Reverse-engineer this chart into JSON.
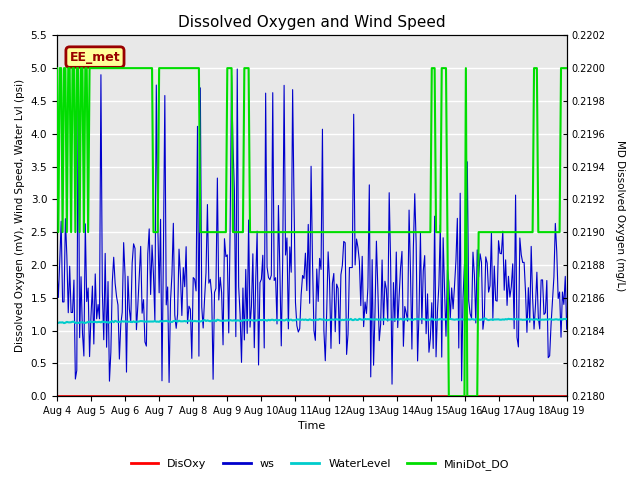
{
  "title": "Dissolved Oxygen and Wind Speed",
  "xlabel": "Time",
  "ylabel_left": "Dissolved Oxygen (mV), Wind Speed, Water Lvl (psi)",
  "ylabel_right": "MD Dissolved Oxygen (mg/L)",
  "ylim_left": [
    0.0,
    5.5
  ],
  "ylim_right": [
    0.218,
    0.2202
  ],
  "xtick_labels": [
    "Aug 4",
    "Aug 5",
    "Aug 6",
    "Aug 7",
    "Aug 8",
    "Aug 9",
    "Aug 10",
    "Aug 11",
    "Aug 12",
    "Aug 13",
    "Aug 14",
    "Aug 15",
    "Aug 16",
    "Aug 17",
    "Aug 18",
    "Aug 19"
  ],
  "background_color": "#e8e8e8",
  "annotation_text": "EE_met",
  "annotation_fg": "#990000",
  "annotation_bg": "#ffff99",
  "disoxy_color": "#ff0000",
  "ws_color": "#0000cc",
  "waterlevel_color": "#00cccc",
  "minidot_color": "#00dd00",
  "seed": 42,
  "n_days": 15,
  "ws_mean": 1.6,
  "ws_std": 0.7,
  "waterlevel_base": 1.12
}
